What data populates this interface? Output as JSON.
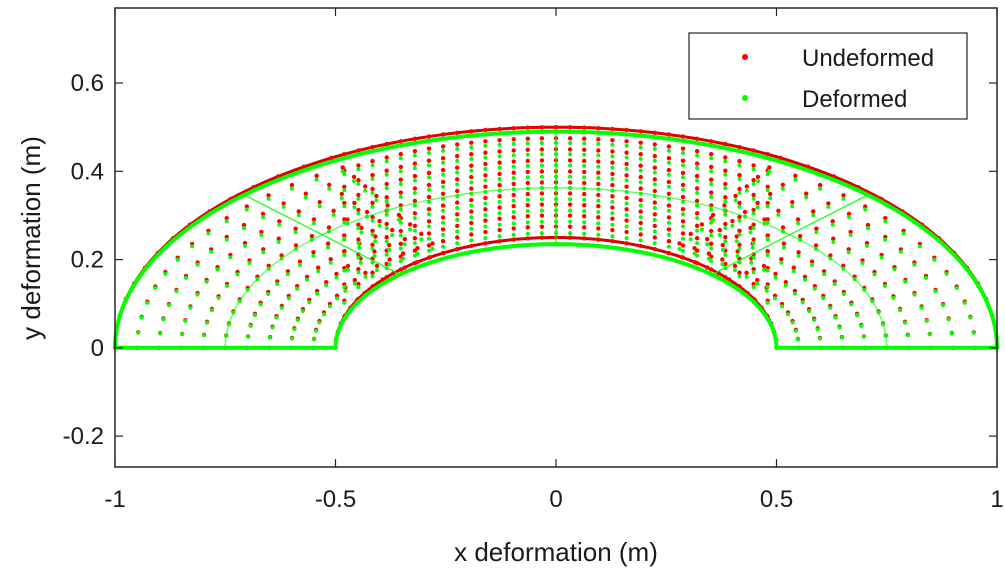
{
  "chart_data": {
    "type": "scatter",
    "title": "",
    "xlabel": "x deformation (m)",
    "ylabel": "y deformation (m)",
    "xlim": [
      -1,
      1
    ],
    "ylim": [
      -0.27,
      0.77
    ],
    "xticks": [
      -1,
      -0.5,
      0,
      0.5,
      1
    ],
    "xtick_labels": [
      "-1",
      "-0.5",
      "0",
      "0.5",
      "1"
    ],
    "yticks": [
      -0.2,
      0,
      0.2,
      0.4,
      0.6
    ],
    "ytick_labels": [
      "-0.2",
      "0",
      "0.2",
      "0.4",
      "0.6"
    ],
    "grid": false,
    "legend_position": "top-right",
    "series": [
      {
        "name": "Undeformed",
        "color": "#ff0000",
        "marker": "dot",
        "geometry": "half-annulus node grid",
        "x_range": [
          -1.0,
          1.0
        ],
        "inner_radius": 0.5,
        "outer_radius": 1.0,
        "outer_top_y": 0.5,
        "inner_top_y": 0.25
      },
      {
        "name": "Deformed",
        "color": "#00ff00",
        "marker": "dot",
        "geometry": "half-annulus node grid",
        "x_range": [
          -1.0,
          1.0
        ],
        "inner_radius": 0.5,
        "outer_radius": 1.0,
        "outer_top_y": 0.49,
        "inner_top_y": 0.235
      }
    ]
  }
}
